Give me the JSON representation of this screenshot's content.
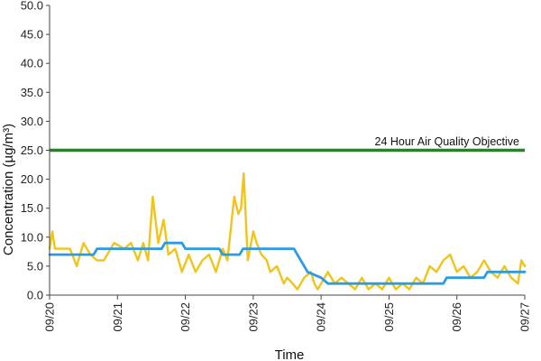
{
  "chart_data": {
    "type": "line",
    "title": "",
    "xlabel": "Time",
    "ylabel": "Concentration (µg/m³)",
    "ylim": [
      0,
      50
    ],
    "yticks": [
      "0.0",
      "5.0",
      "10.0",
      "15.0",
      "20.0",
      "25.0",
      "30.0",
      "35.0",
      "40.0",
      "45.0",
      "50.0"
    ],
    "xlim": [
      "09/20",
      "09/27"
    ],
    "xticks": [
      "09/20",
      "09/21",
      "09/22",
      "09/23",
      "09/24",
      "09/25",
      "09/26",
      "09/27"
    ],
    "grid": false,
    "legend": "none",
    "series": [
      {
        "color": "#f0c419",
        "x_unit": "days from 09/20",
        "points": [
          [
            0.0,
            8
          ],
          [
            0.04,
            11
          ],
          [
            0.08,
            8
          ],
          [
            0.15,
            8
          ],
          [
            0.3,
            8
          ],
          [
            0.4,
            5
          ],
          [
            0.5,
            9
          ],
          [
            0.6,
            7
          ],
          [
            0.7,
            6
          ],
          [
            0.8,
            6
          ],
          [
            0.95,
            9
          ],
          [
            1.1,
            8
          ],
          [
            1.2,
            9
          ],
          [
            1.3,
            6
          ],
          [
            1.38,
            9
          ],
          [
            1.45,
            6
          ],
          [
            1.52,
            17
          ],
          [
            1.6,
            9
          ],
          [
            1.68,
            13
          ],
          [
            1.75,
            7
          ],
          [
            1.85,
            8
          ],
          [
            1.95,
            4
          ],
          [
            2.05,
            7
          ],
          [
            2.15,
            4
          ],
          [
            2.25,
            6
          ],
          [
            2.35,
            7
          ],
          [
            2.45,
            4
          ],
          [
            2.55,
            8
          ],
          [
            2.62,
            6
          ],
          [
            2.72,
            17
          ],
          [
            2.78,
            14
          ],
          [
            2.82,
            15
          ],
          [
            2.86,
            21
          ],
          [
            2.92,
            6
          ],
          [
            3.0,
            11
          ],
          [
            3.05,
            9
          ],
          [
            3.12,
            7
          ],
          [
            3.2,
            6
          ],
          [
            3.25,
            4
          ],
          [
            3.35,
            5
          ],
          [
            3.45,
            2
          ],
          [
            3.5,
            3
          ],
          [
            3.58,
            2
          ],
          [
            3.65,
            1
          ],
          [
            3.75,
            3
          ],
          [
            3.85,
            4
          ],
          [
            3.9,
            2
          ],
          [
            3.95,
            1
          ],
          [
            4.0,
            2
          ],
          [
            4.1,
            4
          ],
          [
            4.2,
            2
          ],
          [
            4.3,
            3
          ],
          [
            4.4,
            2
          ],
          [
            4.5,
            1
          ],
          [
            4.6,
            3
          ],
          [
            4.7,
            1
          ],
          [
            4.8,
            2
          ],
          [
            4.9,
            1
          ],
          [
            5.0,
            3
          ],
          [
            5.1,
            1
          ],
          [
            5.2,
            2
          ],
          [
            5.3,
            1
          ],
          [
            5.4,
            3
          ],
          [
            5.5,
            2
          ],
          [
            5.6,
            5
          ],
          [
            5.7,
            4
          ],
          [
            5.8,
            6
          ],
          [
            5.9,
            7
          ],
          [
            6.0,
            4
          ],
          [
            6.1,
            5
          ],
          [
            6.2,
            3
          ],
          [
            6.3,
            4
          ],
          [
            6.4,
            6
          ],
          [
            6.5,
            4
          ],
          [
            6.6,
            3
          ],
          [
            6.7,
            5
          ],
          [
            6.8,
            3
          ],
          [
            6.9,
            2
          ],
          [
            6.95,
            6
          ],
          [
            7.0,
            5
          ]
        ]
      },
      {
        "color": "#2e9be0",
        "x_unit": "days from 09/20",
        "points": [
          [
            0.0,
            7
          ],
          [
            0.65,
            7
          ],
          [
            0.7,
            8
          ],
          [
            1.65,
            8
          ],
          [
            1.7,
            9
          ],
          [
            1.95,
            9
          ],
          [
            2.0,
            8
          ],
          [
            2.5,
            8
          ],
          [
            2.55,
            7
          ],
          [
            2.8,
            7
          ],
          [
            2.85,
            8
          ],
          [
            3.6,
            8
          ],
          [
            3.7,
            6
          ],
          [
            3.8,
            4
          ],
          [
            4.0,
            3
          ],
          [
            4.1,
            2
          ],
          [
            5.8,
            2
          ],
          [
            5.85,
            3
          ],
          [
            6.4,
            3
          ],
          [
            6.45,
            4
          ],
          [
            7.0,
            4
          ]
        ]
      },
      {
        "color": "#1e8a1e",
        "values": [
          25,
          25
        ]
      }
    ],
    "annotations": [
      {
        "text": "24 Hour Air Quality Objective",
        "y": 25
      }
    ]
  }
}
